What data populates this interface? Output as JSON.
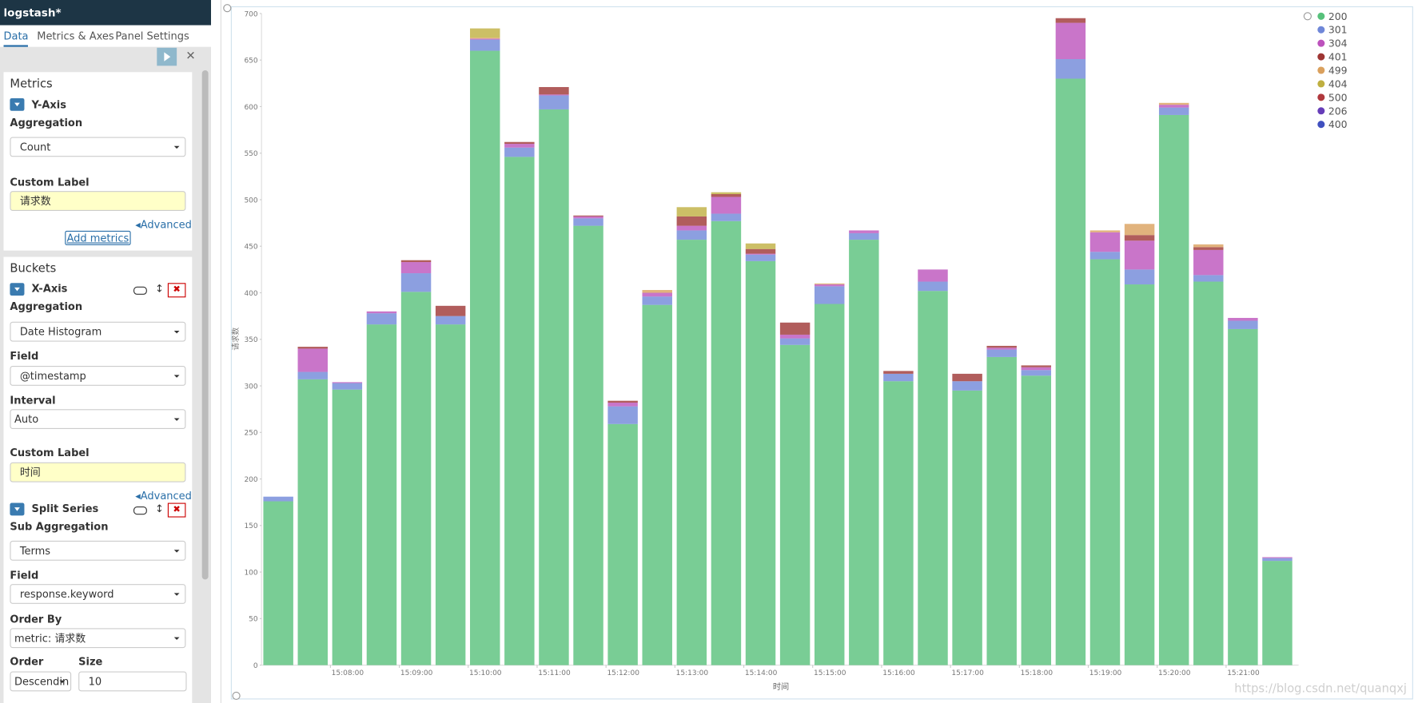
{
  "sidebar": {
    "title": "logstash*",
    "tabs": [
      "Data",
      "Metrics & Axes",
      "Panel Settings"
    ],
    "metrics": {
      "heading": "Metrics",
      "agg_name": "Y-Axis",
      "aggregation_label": "Aggregation",
      "aggregation": "Count",
      "custom_label_label": "Custom Label",
      "custom_label": "请求数",
      "advanced": "Advanced",
      "add_metrics": "Add metrics"
    },
    "buckets": {
      "heading": "Buckets",
      "agg_name": "X-Axis",
      "aggregation_label": "Aggregation",
      "aggregation": "Date Histogram",
      "field_label": "Field",
      "field": "@timestamp",
      "interval_label": "Interval",
      "interval": "Auto",
      "custom_label_label": "Custom Label",
      "custom_label": "时间",
      "advanced": "Advanced"
    },
    "split": {
      "agg_name": "Split Series",
      "sub_aggregation_label": "Sub Aggregation",
      "sub_aggregation": "Terms",
      "field_label": "Field",
      "field": "response.keyword",
      "order_by_label": "Order By",
      "order_by": "metric: 请求数",
      "order_label": "Order",
      "order": "Descendin",
      "size_label": "Size",
      "size": "10"
    }
  },
  "chart_data": {
    "type": "bar",
    "stacked": true,
    "y_label": "请求数",
    "x_label": "时间",
    "categories": [
      null,
      null,
      "15:08:00",
      null,
      "15:09:00",
      null,
      "15:10:00",
      null,
      "15:11:00",
      null,
      "15:12:00",
      null,
      "15:13:00",
      null,
      "15:14:00",
      null,
      "15:15:00",
      null,
      "15:16:00",
      null,
      "15:17:00",
      null,
      "15:18:00",
      null,
      "15:19:00",
      null,
      "15:20:00",
      null,
      "15:21:00",
      null
    ],
    "ylim": [
      0,
      700
    ],
    "yticks": [
      0,
      50,
      100,
      150,
      200,
      250,
      300,
      350,
      400,
      450,
      500,
      550,
      600,
      650,
      700
    ],
    "series": [
      {
        "name": "200",
        "color": "#57c17b",
        "values": [
          176,
          307,
          296,
          366,
          401,
          366,
          660,
          546,
          597,
          472,
          259,
          387,
          457,
          477,
          434,
          344,
          388,
          457,
          305,
          402,
          295,
          331,
          311,
          630,
          436,
          409,
          591,
          412,
          361,
          112
        ]
      },
      {
        "name": "301",
        "color": "#6f87d8",
        "values": [
          5,
          8,
          7,
          12,
          20,
          9,
          12,
          10,
          15,
          8,
          19,
          9,
          10,
          8,
          7,
          7,
          19,
          7,
          8,
          10,
          10,
          8,
          6,
          21,
          8,
          16,
          8,
          7,
          9,
          3
        ]
      },
      {
        "name": "304",
        "color": "#bc52bc",
        "values": [
          null,
          25,
          1,
          2,
          12,
          null,
          1,
          4,
          1,
          2,
          4,
          4,
          5,
          18,
          1,
          4,
          2,
          3,
          null,
          13,
          null,
          2,
          3,
          39,
          21,
          31,
          3,
          27,
          3,
          1
        ]
      },
      {
        "name": "401",
        "color": "#9e3533",
        "values": [
          null,
          2,
          null,
          null,
          2,
          11,
          null,
          2,
          8,
          1,
          2,
          null,
          10,
          3,
          5,
          13,
          null,
          null,
          3,
          null,
          8,
          2,
          2,
          5,
          null,
          6,
          null,
          3,
          null,
          null
        ]
      },
      {
        "name": "499",
        "color": "#daa05d",
        "values": [
          null,
          null,
          null,
          null,
          null,
          null,
          1,
          null,
          null,
          null,
          null,
          3,
          null,
          null,
          null,
          null,
          1,
          null,
          null,
          null,
          null,
          null,
          null,
          null,
          2,
          12,
          2,
          3,
          null,
          null
        ]
      },
      {
        "name": "404",
        "color": "#bfaf40",
        "values": [
          null,
          null,
          null,
          null,
          null,
          null,
          10,
          null,
          null,
          null,
          null,
          null,
          10,
          2,
          6,
          null,
          null,
          null,
          null,
          null,
          null,
          null,
          null,
          null,
          null,
          null,
          null,
          null,
          null,
          null
        ]
      },
      {
        "name": "500",
        "color": "#b0383d",
        "values": [
          null,
          null,
          null,
          null,
          null,
          null,
          null,
          null,
          null,
          null,
          null,
          null,
          null,
          null,
          null,
          null,
          null,
          null,
          null,
          null,
          null,
          null,
          null,
          null,
          null,
          null,
          null,
          null,
          null,
          null
        ]
      },
      {
        "name": "206",
        "color": "#663db8",
        "values": [
          null,
          null,
          null,
          null,
          null,
          null,
          null,
          null,
          null,
          null,
          null,
          null,
          null,
          null,
          null,
          null,
          null,
          null,
          null,
          null,
          null,
          null,
          null,
          null,
          null,
          null,
          null,
          null,
          null,
          null
        ]
      },
      {
        "name": "400",
        "color": "#4050bf",
        "values": [
          null,
          null,
          null,
          null,
          null,
          null,
          null,
          null,
          null,
          null,
          null,
          null,
          null,
          null,
          null,
          null,
          null,
          null,
          null,
          null,
          null,
          null,
          null,
          null,
          null,
          null,
          null,
          null,
          null,
          null
        ]
      }
    ]
  },
  "watermark": "https://blog.csdn.net/quanqxj"
}
